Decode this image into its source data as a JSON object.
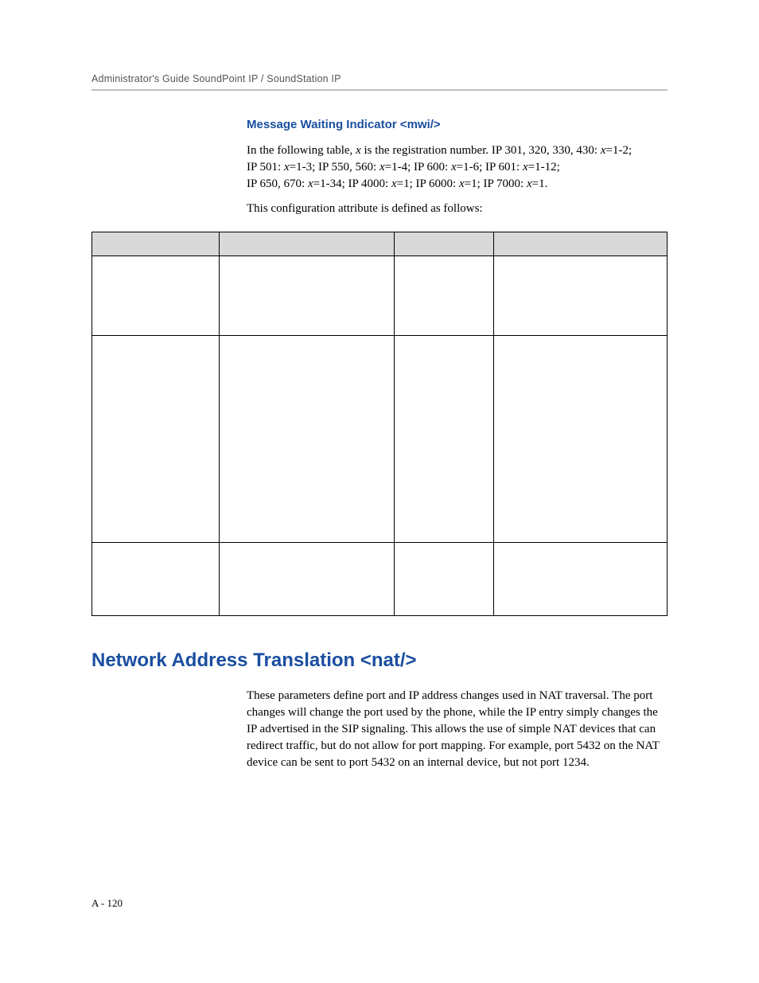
{
  "header": {
    "running": "Administrator's Guide SoundPoint IP / SoundStation IP"
  },
  "mwi": {
    "title": "Message Waiting Indicator <mwi/>",
    "intro_line1_a": "In the following table, ",
    "intro_line1_x": "x",
    "intro_line1_b": " is the registration number. IP 301, 320, 330, 430: ",
    "intro_line1_x2": "x",
    "intro_line1_c": "=1-2;",
    "intro_line2_a": "IP 501: ",
    "intro_line2_x1": "x",
    "intro_line2_b": "=1-3; IP 550, 560: ",
    "intro_line2_x2": "x",
    "intro_line2_c": "=1-4; IP 600: ",
    "intro_line2_x3": "x",
    "intro_line2_d": "=1-6; IP 601: ",
    "intro_line2_x4": "x",
    "intro_line2_e": "=1-12;",
    "intro_line3_a": "IP 650, 670: ",
    "intro_line3_x1": "x",
    "intro_line3_b": "=1-34; IP 4000: ",
    "intro_line3_x2": "x",
    "intro_line3_c": "=1; IP 6000: ",
    "intro_line3_x3": "x",
    "intro_line3_d": "=1; IP 7000: ",
    "intro_line3_x4": "x",
    "intro_line3_e": "=1.",
    "intro2": "This configuration attribute is defined as follows:"
  },
  "table": {
    "h1": "",
    "h2": "",
    "h3": "",
    "h4": "",
    "r1c1": "",
    "r1c2": "",
    "r1c3": "",
    "r1c4": "",
    "r2c1": "",
    "r2c2": "",
    "r2c3": "",
    "r2c4": "",
    "r3c1": "",
    "r3c2": "",
    "r3c3": "",
    "r3c4": ""
  },
  "nat": {
    "title": "Network Address Translation <nat/>",
    "body": "These parameters define port and IP address changes used in NAT traversal. The port changes will change the port used by the phone, while the IP entry simply changes the IP advertised in the SIP signaling. This allows the use of simple NAT devices that can redirect traffic, but do not allow for port mapping. For example, port 5432 on the NAT device can be sent to port 5432 on an internal device, but not port 1234."
  },
  "footer": {
    "page": "A - 120"
  },
  "style": {
    "accent_color": "#1a4ea0",
    "header_gray": "#d9d9d9",
    "rule_gray": "#bfbfbf",
    "text_color": "#000000",
    "body_font_size_pt": 11,
    "heading_font_size_pt": 18
  }
}
